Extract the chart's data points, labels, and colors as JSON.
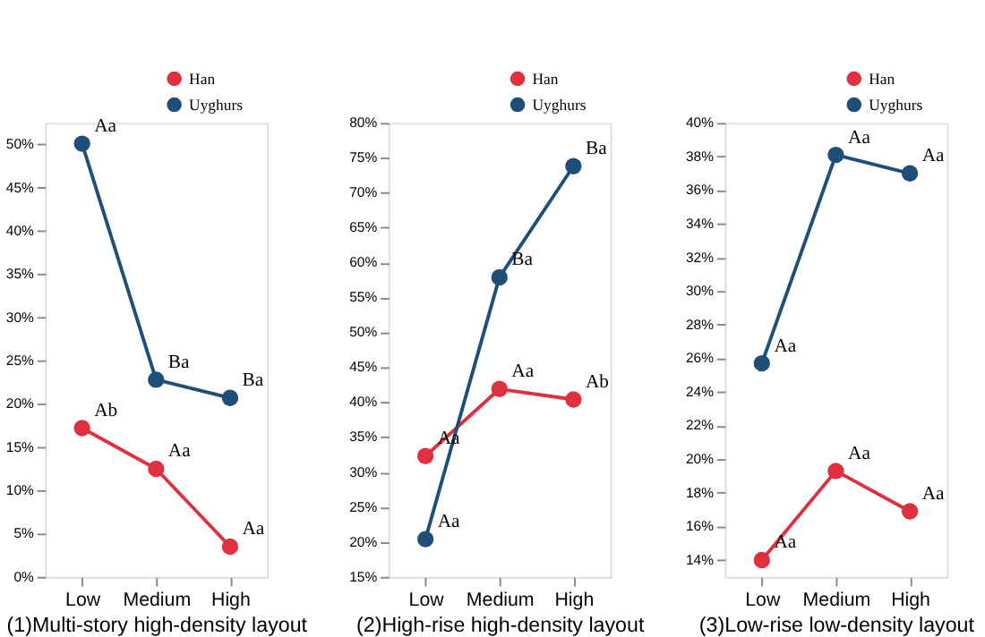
{
  "chart_data": [
    {
      "type": "line",
      "xlabel": "(1)Multi-story high-density layout",
      "categories": [
        "Low",
        "Medium",
        "High"
      ],
      "marker": "circle",
      "line_style": "solid",
      "grid": false,
      "legend": "top right",
      "ylim": [
        0,
        52.5
      ],
      "yticks": [
        {
          "value": 0,
          "label": "0%"
        },
        {
          "value": 5,
          "label": "5%"
        },
        {
          "value": 10,
          "label": "10%"
        },
        {
          "value": 15,
          "label": "15%"
        },
        {
          "value": 20,
          "label": "20%"
        },
        {
          "value": 25,
          "label": "25%"
        },
        {
          "value": 30,
          "label": "30%"
        },
        {
          "value": 35,
          "label": "35%"
        },
        {
          "value": 40,
          "label": "40%"
        },
        {
          "value": 45,
          "label": "45%"
        },
        {
          "value": 50,
          "label": "50%"
        }
      ],
      "series": [
        {
          "name": "Han",
          "color": "#e0303f",
          "values": [
            17.2,
            12.5,
            3.5
          ],
          "value_labels": [
            "Ab",
            "Aa",
            "Aa"
          ]
        },
        {
          "name": "Uyghurs",
          "color": "#1f4e79",
          "values": [
            50.1,
            22.8,
            20.7
          ],
          "value_labels": [
            "Aa",
            "Ba",
            "Ba"
          ]
        }
      ]
    },
    {
      "type": "line",
      "xlabel": "(2)High-rise high-density layout",
      "categories": [
        "Low",
        "Medium",
        "High"
      ],
      "marker": "circle",
      "line_style": "solid",
      "grid": false,
      "legend": "top right",
      "ylim": [
        15,
        80
      ],
      "yticks": [
        {
          "value": 15,
          "label": "15%"
        },
        {
          "value": 20,
          "label": "20%"
        },
        {
          "value": 25,
          "label": "25%"
        },
        {
          "value": 30,
          "label": "30%"
        },
        {
          "value": 35,
          "label": "35%"
        },
        {
          "value": 40,
          "label": "40%"
        },
        {
          "value": 45,
          "label": "45%"
        },
        {
          "value": 50,
          "label": "50%"
        },
        {
          "value": 55,
          "label": "55%"
        },
        {
          "value": 60,
          "label": "60%"
        },
        {
          "value": 65,
          "label": "65%"
        },
        {
          "value": 70,
          "label": "70%"
        },
        {
          "value": 75,
          "label": "75%"
        },
        {
          "value": 80,
          "label": "80%"
        }
      ],
      "series": [
        {
          "name": "Han",
          "color": "#e0303f",
          "values": [
            32.3,
            41.9,
            40.4
          ],
          "value_labels": [
            "Aa",
            "Aa",
            "Ab"
          ]
        },
        {
          "name": "Uyghurs",
          "color": "#1f4e79",
          "values": [
            20.4,
            57.9,
            73.8
          ],
          "value_labels": [
            "Aa",
            "Ba",
            "Ba"
          ]
        }
      ]
    },
    {
      "type": "line",
      "xlabel": "(3)Low-rise low-density layout",
      "categories": [
        "Low",
        "Medium",
        "High"
      ],
      "marker": "circle",
      "line_style": "solid",
      "grid": false,
      "legend": "top right",
      "ylim": [
        13,
        40
      ],
      "yticks": [
        {
          "value": 14,
          "label": "14%"
        },
        {
          "value": 16,
          "label": "16%"
        },
        {
          "value": 18,
          "label": "18%"
        },
        {
          "value": 20,
          "label": "20%"
        },
        {
          "value": 22,
          "label": "22%"
        },
        {
          "value": 24,
          "label": "24%"
        },
        {
          "value": 26,
          "label": "26%"
        },
        {
          "value": 28,
          "label": "28%"
        },
        {
          "value": 30,
          "label": "30%"
        },
        {
          "value": 32,
          "label": "32%"
        },
        {
          "value": 34,
          "label": "34%"
        },
        {
          "value": 36,
          "label": "36%"
        },
        {
          "value": 38,
          "label": "38%"
        },
        {
          "value": 40,
          "label": "40%"
        }
      ],
      "series": [
        {
          "name": "Han",
          "color": "#e0303f",
          "values": [
            14.0,
            19.3,
            16.9
          ],
          "value_labels": [
            "Aa",
            "Aa",
            "Aa"
          ]
        },
        {
          "name": "Uyghurs",
          "color": "#1f4e79",
          "values": [
            25.7,
            38.1,
            37.0
          ],
          "value_labels": [
            "Aa",
            "Aa",
            "Aa"
          ]
        }
      ]
    }
  ]
}
